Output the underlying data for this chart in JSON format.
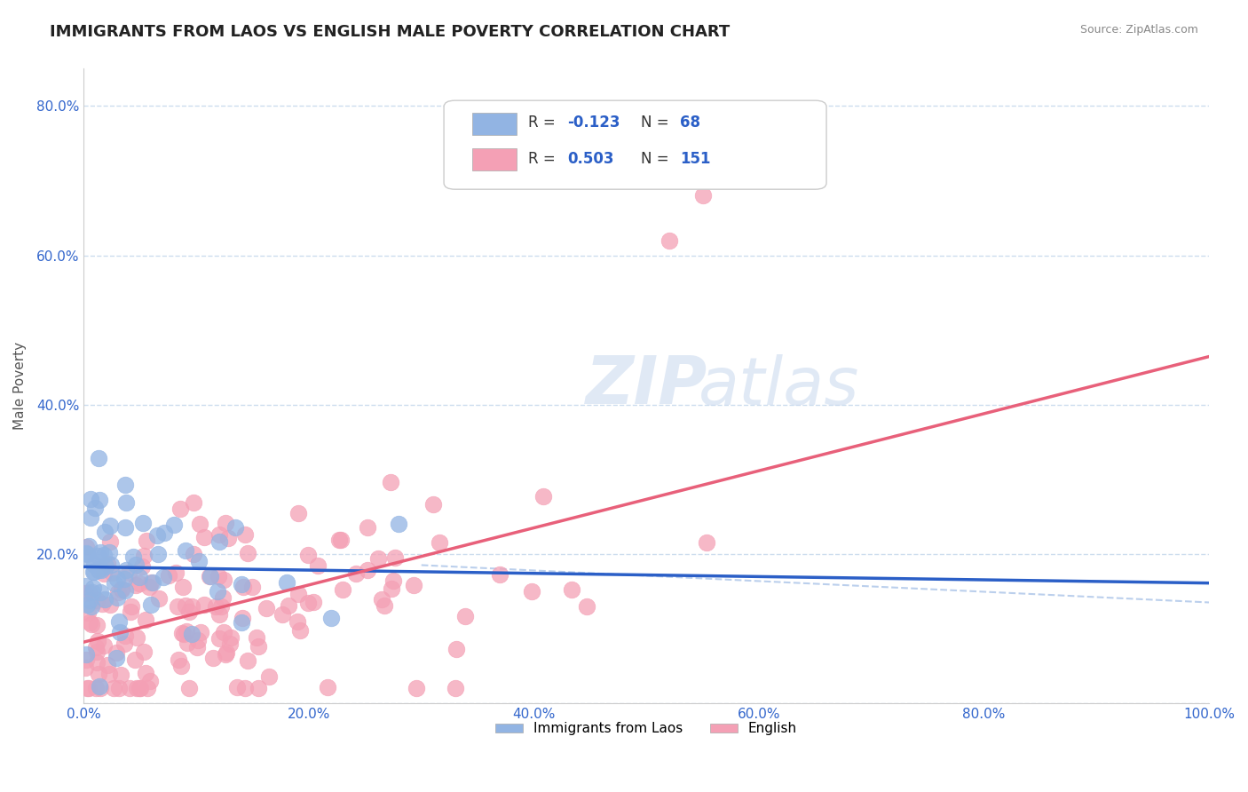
{
  "title": "IMMIGRANTS FROM LAOS VS ENGLISH MALE POVERTY CORRELATION CHART",
  "source": "Source: ZipAtlas.com",
  "xlabel": "",
  "ylabel": "Male Poverty",
  "xlim": [
    0,
    1.0
  ],
  "ylim": [
    0,
    0.85
  ],
  "xticks": [
    0.0,
    0.2,
    0.4,
    0.6,
    0.8,
    1.0
  ],
  "xticklabels": [
    "0.0%",
    "20.0%",
    "40.0%",
    "60.0%",
    "80.0%",
    "100.0%"
  ],
  "yticks": [
    0.0,
    0.2,
    0.4,
    0.6,
    0.8
  ],
  "yticklabels": [
    "",
    "20.0%",
    "40.0%",
    "60.0%",
    "80.0%"
  ],
  "legend_labels": [
    "Immigrants from Laos",
    "English"
  ],
  "blue_R": -0.123,
  "blue_N": 68,
  "pink_R": 0.503,
  "pink_N": 151,
  "blue_color": "#92b4e3",
  "pink_color": "#f4a0b5",
  "blue_line_color": "#2b5fc7",
  "pink_line_color": "#e8607a",
  "background_color": "#ffffff",
  "watermark_zip": "ZIP",
  "watermark_atlas": "atlas",
  "title_fontsize": 13,
  "tick_label_color": "#3366cc"
}
